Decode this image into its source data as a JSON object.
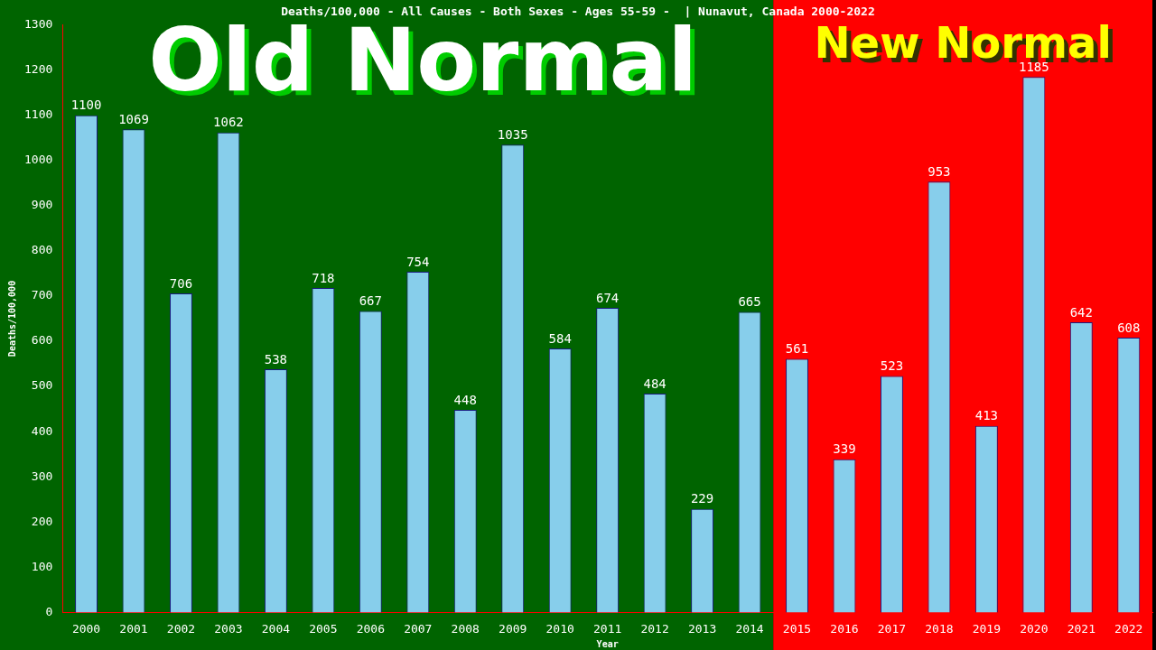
{
  "chart_data": {
    "type": "bar",
    "title": "Deaths/100,000 - All Causes - Both Sexes - Ages 55-59 -  | Nunavut, Canada 2000-2022",
    "xlabel": "Year",
    "ylabel": "Deaths/100,000",
    "categories": [
      "2000",
      "2001",
      "2002",
      "2003",
      "2004",
      "2005",
      "2006",
      "2007",
      "2008",
      "2009",
      "2010",
      "2011",
      "2012",
      "2013",
      "2014",
      "2015",
      "2016",
      "2017",
      "2018",
      "2019",
      "2020",
      "2021",
      "2022"
    ],
    "values": [
      1100,
      1069,
      706,
      1062,
      538,
      718,
      667,
      754,
      448,
      1035,
      584,
      674,
      484,
      229,
      665,
      561,
      339,
      523,
      953,
      413,
      1185,
      642,
      608
    ],
    "color": "#87ceeb",
    "data_labels": true,
    "grid": false,
    "legend": false,
    "ylim": [
      0,
      1300
    ],
    "yticks": [
      0,
      100,
      200,
      300,
      400,
      500,
      600,
      700,
      800,
      900,
      1000,
      1100,
      1200,
      1300
    ],
    "bands": [
      {
        "axis": "x",
        "from": "2000",
        "to": "2014",
        "label": "Old Normal",
        "color": "#006400"
      },
      {
        "axis": "x",
        "from": "2015",
        "to": "2022",
        "label": "New Normal",
        "color": "#ff0000"
      }
    ]
  }
}
